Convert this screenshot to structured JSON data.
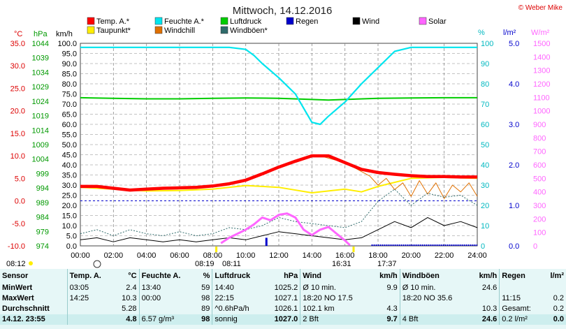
{
  "header": {
    "title": "Mittwoch, 14.12.2016",
    "copyright": "© Weber Mike"
  },
  "colors": {
    "temp": "#ff0000",
    "humidity": "#00e5ee",
    "pressure": "#00cc00",
    "rain": "#0000cc",
    "wind": "#000000",
    "solar": "#ff66ff",
    "dewpoint": "#ffee00",
    "windchill": "#e07000",
    "gust": "#2f6b6b",
    "grid": "#888888"
  },
  "legend": [
    {
      "label": "Temp. A.*",
      "color": "#ff0000"
    },
    {
      "label": "Feuchte A.*",
      "color": "#00e5ee"
    },
    {
      "label": "Luftdruck",
      "color": "#00cc00"
    },
    {
      "label": "Regen",
      "color": "#0000cc"
    },
    {
      "label": "Wind",
      "color": "#000000"
    },
    {
      "label": "Solar",
      "color": "#ff66ff"
    },
    {
      "label": "Taupunkt*",
      "color": "#ffee00"
    },
    {
      "label": "Windchill",
      "color": "#e07000"
    },
    {
      "label": "Windböen*",
      "color": "#2f6b6b"
    }
  ],
  "axes": {
    "unit_temp": "°C",
    "unit_press": "hPa",
    "unit_wind": "km/h",
    "unit_hum": "%",
    "unit_rain": "l/m²",
    "unit_solar": "W/m²",
    "temp_ticks": [
      "35.0",
      "30.0",
      "25.0",
      "20.0",
      "15.0",
      "10.0",
      "5.0",
      "0.0",
      "-5.0",
      "-10.0"
    ],
    "press_ticks": [
      "1044",
      "1039",
      "1034",
      "1029",
      "1024",
      "1019",
      "1014",
      "1009",
      "1004",
      "999",
      "994",
      "989",
      "984",
      "979",
      "974"
    ],
    "wind_ticks": [
      "100.0",
      "95.0",
      "90.0",
      "85.0",
      "80.0",
      "75.0",
      "70.0",
      "65.0",
      "60.0",
      "55.0",
      "50.0",
      "45.0",
      "40.0",
      "35.0",
      "30.0",
      "25.0",
      "20.0",
      "15.0",
      "10.0",
      "5.0",
      "0.0"
    ],
    "hum_ticks": [
      "100",
      "90",
      "80",
      "70",
      "60",
      "50",
      "40",
      "30",
      "20",
      "10",
      "0"
    ],
    "rain_ticks": [
      "5.0",
      "4.0",
      "3.0",
      "2.0",
      "1.0",
      "0.0"
    ],
    "solar_ticks": [
      "1500",
      "1400",
      "1300",
      "1200",
      "1100",
      "1000",
      "900",
      "800",
      "700",
      "600",
      "500",
      "400",
      "300",
      "200",
      "100",
      "0"
    ],
    "x_ticks": [
      "00:00",
      "02:00",
      "04:00",
      "06:00",
      "08:00",
      "10:00",
      "12:00",
      "14:00",
      "16:00",
      "18:00",
      "20:00",
      "22:00",
      "24:00"
    ]
  },
  "sun": {
    "sunrise": "08:12",
    "sunrise_bar": "08:19",
    "sunrise_bar2": "08:11",
    "sunset": "16:31",
    "sunset_bar": "17:37"
  },
  "chart_data": {
    "type": "line",
    "x_unit": "hour",
    "xlim": [
      0,
      24
    ],
    "series": [
      {
        "name": "Temp. A.*",
        "axis": "°C",
        "ylim": [
          -10,
          35
        ],
        "x": [
          0,
          1,
          2,
          3,
          4,
          5,
          6,
          7,
          8,
          9,
          10,
          11,
          12,
          13,
          14,
          15,
          16,
          17,
          18,
          19,
          20,
          21,
          22,
          23,
          24
        ],
        "y": [
          3.2,
          3.2,
          2.8,
          2.4,
          2.6,
          2.8,
          2.9,
          3.0,
          3.3,
          3.8,
          4.6,
          6.0,
          7.5,
          8.8,
          10.0,
          10.0,
          8.5,
          7.0,
          6.3,
          5.9,
          5.6,
          5.4,
          5.4,
          5.3,
          5.3
        ]
      },
      {
        "name": "Taupunkt*",
        "axis": "°C",
        "ylim": [
          -10,
          35
        ],
        "x": [
          0,
          2,
          4,
          6,
          8,
          10,
          12,
          14,
          16,
          17,
          18,
          20,
          22,
          24
        ],
        "y": [
          3.0,
          2.6,
          2.2,
          2.3,
          2.6,
          3.4,
          3.0,
          1.8,
          2.6,
          2.0,
          3.2,
          5.0,
          5.2,
          5.0
        ]
      },
      {
        "name": "Feuchte A.*",
        "axis": "%",
        "ylim": [
          0,
          100
        ],
        "x": [
          0,
          2,
          4,
          6,
          8,
          9,
          10,
          10.5,
          11,
          12,
          13,
          13.5,
          14,
          14.5,
          15,
          16,
          17,
          18,
          19,
          20,
          22,
          24
        ],
        "y": [
          98,
          98,
          98,
          98,
          98,
          98,
          97,
          94,
          90,
          83,
          75,
          68,
          61,
          60,
          64,
          71,
          80,
          88,
          96,
          98,
          98,
          98
        ]
      },
      {
        "name": "Luftdruck",
        "axis": "hPa",
        "ylim": [
          974,
          1044
        ],
        "x": [
          0,
          2,
          4,
          6,
          8,
          10,
          12,
          14,
          15,
          16,
          18,
          20,
          22,
          24
        ],
        "y": [
          1025.2,
          1025.0,
          1024.8,
          1024.8,
          1025.0,
          1025.1,
          1025.0,
          1024.6,
          1024.4,
          1024.6,
          1025.0,
          1025.1,
          1025.2,
          1025.2
        ]
      },
      {
        "name": "Wind",
        "axis": "km/h",
        "ylim": [
          0,
          100
        ],
        "x": [
          0,
          1,
          2,
          3,
          4,
          5,
          6,
          7,
          8,
          9,
          10,
          11,
          12,
          13,
          14,
          15,
          16,
          17,
          18,
          19,
          20,
          21,
          22,
          23,
          24
        ],
        "y": [
          3,
          4,
          2,
          4,
          3,
          2,
          3,
          2,
          3,
          4,
          3,
          5,
          7,
          6,
          5,
          4,
          3,
          4,
          8,
          12,
          9,
          14,
          10,
          12,
          9
        ]
      },
      {
        "name": "Windböen*",
        "axis": "km/h",
        "ylim": [
          0,
          100
        ],
        "x": [
          0,
          1,
          2,
          3,
          4,
          5,
          6,
          7,
          8,
          9,
          10,
          11,
          12,
          13,
          14,
          15,
          16,
          17,
          18,
          19,
          20,
          21,
          22,
          23,
          24
        ],
        "y": [
          6,
          8,
          5,
          8,
          6,
          5,
          7,
          5,
          6,
          9,
          8,
          10,
          14,
          12,
          11,
          10,
          9,
          12,
          22,
          28,
          20,
          26,
          24,
          25,
          20
        ]
      },
      {
        "name": "Windchill",
        "axis": "°C",
        "ylim": [
          -10,
          35
        ],
        "x": [
          14.5,
          15.5,
          16.5,
          17.5,
          18,
          18.5,
          19,
          19.5,
          20,
          20.5,
          21,
          21.5,
          22,
          22.5,
          23,
          23.5,
          24
        ],
        "y": [
          10.0,
          9.0,
          7.5,
          5.5,
          3.5,
          5.0,
          2.5,
          4.0,
          1.0,
          4.5,
          1.5,
          4.0,
          0.5,
          3.5,
          2.0,
          4.0,
          1.0
        ]
      },
      {
        "name": "Solar",
        "axis": "W/m²",
        "ylim": [
          0,
          1500
        ],
        "x": [
          8.5,
          9,
          9.5,
          10,
          10.5,
          11,
          11.5,
          12,
          12.5,
          13,
          13.5,
          14,
          14.5,
          15,
          15.5,
          16,
          16.3
        ],
        "y": [
          20,
          60,
          90,
          120,
          160,
          210,
          190,
          230,
          240,
          210,
          120,
          80,
          120,
          140,
          90,
          40,
          5
        ]
      },
      {
        "name": "Regen",
        "axis": "l/m²",
        "ylim": [
          0,
          5
        ],
        "x": [
          11.25
        ],
        "y": [
          0.2
        ]
      }
    ]
  },
  "stats": {
    "headers": [
      "Sensor",
      "Temp. A.",
      "°C",
      "Feuchte A.",
      "%",
      "Luftdruck",
      "hPa",
      "Wind",
      "km/h",
      "Windböen",
      "km/h",
      "Regen",
      "l/m²"
    ],
    "rows": [
      [
        "MinWert",
        "03:05",
        "2.4",
        "13:40",
        "59",
        "14:40",
        "1025.2",
        "Ø 10 min.",
        "9.9",
        "Ø 10 min.",
        "24.6",
        "",
        ""
      ],
      [
        "MaxWert",
        "14:25",
        "10.3",
        "00:00",
        "98",
        "22:15",
        "1027.1",
        "18:20   NO 17.5",
        "",
        "18:20   NO 35.6",
        "",
        "11:15",
        "0.2"
      ],
      [
        "Durchschnitt",
        "",
        "5.28",
        "",
        "89",
        "^0.6hPa/h",
        "1026.1",
        "102.1 km",
        "4.3",
        "",
        "10.3",
        "Gesamt:",
        "0.2"
      ],
      [
        "14.12. 23:55",
        "",
        "4.8",
        "6.57 g/m³",
        "98",
        "sonnig",
        "1027.0",
        "2 Bft",
        "9.7",
        "4 Bft",
        "24.6",
        "0.2 l/m²",
        "0.0"
      ]
    ]
  }
}
